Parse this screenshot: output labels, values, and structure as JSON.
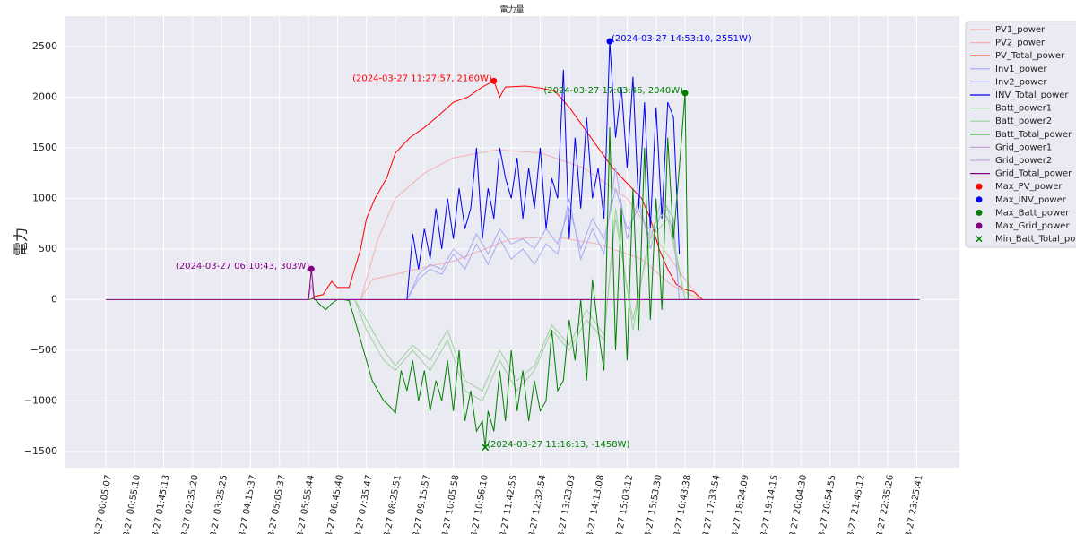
{
  "chart_data": {
    "type": "line",
    "title": "電力量",
    "ylabel": "電力",
    "xlim": [
      -14.2,
      294.7
    ],
    "ylim": [
      -1660,
      2800
    ],
    "grid": true,
    "legend": "right",
    "xticks": [
      {
        "value": 0,
        "label": "3-27 00:05:07"
      },
      {
        "value": 10,
        "label": "3-27 00:55:10"
      },
      {
        "value": 20,
        "label": "3-27 01:45:13"
      },
      {
        "value": 30,
        "label": "3-27 02:35:20"
      },
      {
        "value": 40,
        "label": "3-27 03:25:25"
      },
      {
        "value": 50,
        "label": "3-27 04:15:37"
      },
      {
        "value": 60,
        "label": "3-27 05:05:37"
      },
      {
        "value": 70,
        "label": "3-27 05:55:44"
      },
      {
        "value": 80,
        "label": "3-27 06:45:40"
      },
      {
        "value": 90,
        "label": "3-27 07:35:47"
      },
      {
        "value": 100,
        "label": "3-27 08:25:51"
      },
      {
        "value": 110,
        "label": "3-27 09:15:57"
      },
      {
        "value": 120,
        "label": "3-27 10:05:58"
      },
      {
        "value": 130,
        "label": "3-27 10:56:10"
      },
      {
        "value": 140,
        "label": "3-27 11:42:55"
      },
      {
        "value": 150,
        "label": "3-27 12:32:54"
      },
      {
        "value": 160,
        "label": "3-27 13:23:03"
      },
      {
        "value": 170,
        "label": "3-27 14:13:08"
      },
      {
        "value": 180,
        "label": "3-27 15:03:12"
      },
      {
        "value": 190,
        "label": "3-27 15:53:30"
      },
      {
        "value": 200,
        "label": "3-27 16:43:38"
      },
      {
        "value": 210,
        "label": "3-27 17:33:54"
      },
      {
        "value": 220,
        "label": "3-27 18:24:09"
      },
      {
        "value": 230,
        "label": "3-27 19:14:15"
      },
      {
        "value": 240,
        "label": "3-27 20:04:30"
      },
      {
        "value": 250,
        "label": "3-27 20:54:55"
      },
      {
        "value": 260,
        "label": "3-27 21:45:12"
      },
      {
        "value": 270,
        "label": "3-27 22:35:26"
      },
      {
        "value": 280,
        "label": "3-27 23:25:41"
      }
    ],
    "yticks": [
      {
        "value": -1500,
        "label": "−1500"
      },
      {
        "value": -1000,
        "label": "−1000"
      },
      {
        "value": -500,
        "label": "−500"
      },
      0,
      500,
      1000,
      1500,
      2000,
      2500
    ],
    "series": [
      {
        "name": "PV1_power",
        "color": "#f4b0b0",
        "x": [
          88,
          94,
          100,
          110,
          120,
          135,
          150,
          165,
          180,
          190,
          200,
          205
        ],
        "values": [
          0,
          600,
          1000,
          1250,
          1400,
          1480,
          1450,
          1300,
          1000,
          600,
          200,
          0
        ]
      },
      {
        "name": "PV2_power",
        "color": "#f4b0b0",
        "x": [
          88,
          92,
          100,
          110,
          120,
          140,
          155,
          170,
          185,
          195,
          205
        ],
        "values": [
          0,
          200,
          250,
          320,
          380,
          600,
          620,
          550,
          400,
          150,
          0
        ]
      },
      {
        "name": "PV_Total_power",
        "color": "#ff0000",
        "x": [
          71,
          72,
          75,
          78,
          80,
          84,
          88,
          90,
          93,
          97,
          100,
          105,
          110,
          115,
          120,
          125,
          130,
          134,
          136,
          138,
          145,
          150,
          155,
          160,
          165,
          170,
          175,
          180,
          185,
          188,
          191,
          194,
          197,
          200,
          203,
          206
        ],
        "values": [
          0,
          30,
          50,
          180,
          120,
          120,
          500,
          800,
          1000,
          1200,
          1450,
          1600,
          1700,
          1820,
          1950,
          2000,
          2100,
          2160,
          2000,
          2100,
          2110,
          2090,
          2060,
          1900,
          1700,
          1500,
          1300,
          1150,
          1000,
          800,
          500,
          300,
          150,
          100,
          80,
          0
        ]
      },
      {
        "name": "Inv1_power",
        "color": "#a8a8f0",
        "x": [
          104,
          108,
          112,
          116,
          120,
          124,
          128,
          132,
          136,
          140,
          144,
          148,
          152,
          156,
          160,
          164,
          168,
          172,
          176,
          180,
          184,
          188,
          192,
          196,
          198
        ],
        "values": [
          0,
          250,
          350,
          300,
          500,
          400,
          650,
          450,
          700,
          550,
          600,
          500,
          700,
          550,
          900,
          500,
          800,
          600,
          1100,
          700,
          900,
          600,
          1000,
          800,
          0
        ]
      },
      {
        "name": "Inv2_power",
        "color": "#a8a8f0",
        "x": [
          104,
          108,
          112,
          116,
          120,
          124,
          128,
          132,
          136,
          140,
          144,
          148,
          152,
          156,
          160,
          164,
          168,
          172,
          176,
          180,
          184,
          188,
          192,
          196,
          198
        ],
        "values": [
          0,
          200,
          300,
          250,
          450,
          300,
          550,
          350,
          600,
          400,
          500,
          350,
          550,
          450,
          1000,
          400,
          700,
          450,
          1300,
          600,
          1000,
          500,
          900,
          700,
          0
        ]
      },
      {
        "name": "INV_Total_power",
        "color": "#0000ee",
        "x": [
          104,
          106,
          108,
          110,
          112,
          114,
          116,
          118,
          120,
          122,
          124,
          126,
          128,
          130,
          132,
          134,
          136,
          138,
          140,
          142,
          144,
          146,
          148,
          150,
          152,
          154,
          156,
          158,
          160,
          162,
          164,
          166,
          168,
          170,
          172,
          174,
          176,
          178,
          180,
          182,
          184,
          186,
          188,
          190,
          192,
          194,
          196,
          198
        ],
        "values": [
          0,
          650,
          300,
          700,
          400,
          900,
          500,
          1000,
          600,
          1100,
          700,
          900,
          1500,
          600,
          1100,
          800,
          1500,
          1200,
          1000,
          1400,
          800,
          1300,
          900,
          1500,
          700,
          1200,
          1000,
          2270,
          600,
          1600,
          900,
          1800,
          1000,
          1300,
          800,
          2551,
          1600,
          2100,
          1300,
          2200,
          900,
          1950,
          700,
          1900,
          800,
          1950,
          1800,
          450
        ]
      },
      {
        "name": "Batt_power1",
        "color": "#9fd09f",
        "x": [
          86,
          90,
          96,
          100,
          106,
          112,
          118,
          124,
          130,
          136,
          142,
          148,
          154,
          160,
          166,
          172,
          176,
          182,
          188,
          194,
          200
        ],
        "values": [
          0,
          -300,
          -600,
          -700,
          -500,
          -700,
          -400,
          -900,
          -1000,
          -600,
          -900,
          -700,
          -300,
          -500,
          -200,
          -400,
          900,
          -300,
          700,
          900,
          0
        ]
      },
      {
        "name": "Batt_power2",
        "color": "#9fd09f",
        "x": [
          86,
          90,
          96,
          100,
          106,
          112,
          118,
          124,
          130,
          136,
          142,
          148,
          154,
          160,
          166,
          172,
          176,
          182,
          188,
          194,
          200
        ],
        "values": [
          0,
          -200,
          -500,
          -650,
          -450,
          -600,
          -300,
          -800,
          -900,
          -500,
          -800,
          -650,
          -250,
          -450,
          -100,
          -350,
          800,
          -200,
          600,
          800,
          0
        ]
      },
      {
        "name": "Batt_Total_power",
        "color": "#008000",
        "x": [
          70,
          72,
          74,
          76,
          78,
          80,
          82,
          84,
          86,
          88,
          90,
          92,
          94,
          96,
          98,
          100,
          102,
          104,
          106,
          108,
          110,
          112,
          114,
          116,
          118,
          120,
          122,
          124,
          126,
          128,
          130,
          131,
          132,
          134,
          136,
          138,
          140,
          142,
          144,
          146,
          148,
          150,
          152,
          154,
          156,
          158,
          160,
          162,
          164,
          166,
          168,
          170,
          172,
          174,
          176,
          178,
          180,
          182,
          184,
          186,
          188,
          190,
          192,
          194,
          196,
          198,
          200,
          201
        ],
        "values": [
          0,
          10,
          -50,
          -100,
          -40,
          0,
          0,
          -10,
          -200,
          -400,
          -600,
          -800,
          -900,
          -1000,
          -1050,
          -1120,
          -700,
          -900,
          -600,
          -1000,
          -700,
          -1100,
          -800,
          -1000,
          -600,
          -1100,
          -500,
          -1200,
          -900,
          -1300,
          -1200,
          -1458,
          -1100,
          -1300,
          -700,
          -1200,
          -500,
          -1100,
          -700,
          -1200,
          -800,
          -1100,
          -1000,
          -300,
          -900,
          -800,
          -200,
          -600,
          0,
          -800,
          200,
          -300,
          -700,
          1700,
          -500,
          900,
          -600,
          1100,
          -300,
          1500,
          -200,
          1000,
          -100,
          1600,
          600,
          1300,
          2040,
          0
        ]
      },
      {
        "name": "Grid_power1",
        "color": "#c8a8d8",
        "x": [
          70,
          71,
          72,
          200,
          201
        ],
        "values": [
          0,
          150,
          0,
          0,
          0
        ]
      },
      {
        "name": "Grid_power2",
        "color": "#c8a8d8",
        "x": [
          70,
          71,
          72,
          200,
          201
        ],
        "values": [
          0,
          150,
          0,
          0,
          0
        ]
      },
      {
        "name": "Grid_Total_power",
        "color": "#800080",
        "x": [
          0,
          70,
          71,
          72,
          281
        ],
        "values": [
          0,
          0,
          303,
          0,
          0
        ]
      }
    ],
    "points": [
      {
        "name": "Max_PV_power",
        "color": "#ff0000",
        "marker": "o",
        "x": 134,
        "value": 2160,
        "label": "(2024-03-27 11:27:57, 2160W)"
      },
      {
        "name": "Max_INV_power",
        "color": "#0000ee",
        "marker": "o",
        "x": 174,
        "value": 2551,
        "label": "(2024-03-27 14:53:10, 2551W)"
      },
      {
        "name": "Max_Batt_power",
        "color": "#008000",
        "marker": "o",
        "x": 200,
        "value": 2040,
        "label": "(2024-03-27 17:03:46, 2040W)"
      },
      {
        "name": "Max_Grid_power",
        "color": "#800080",
        "marker": "o",
        "x": 71,
        "value": 303,
        "label": "(2024-03-27 06:10:43, 303W)"
      },
      {
        "name": "Min_Batt_Total_power",
        "color": "#008000",
        "marker": "x",
        "x": 131,
        "value": -1458,
        "label": "(2024-03-27 11:16:13, -1458W)"
      }
    ]
  }
}
